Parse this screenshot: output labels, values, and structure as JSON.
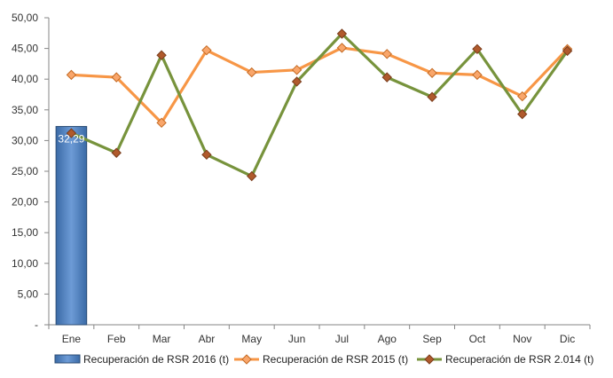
{
  "chart_data": {
    "type": "bar+line",
    "categories": [
      "Ene",
      "Feb",
      "Mar",
      "Abr",
      "May",
      "Jun",
      "Jul",
      "Ago",
      "Sep",
      "Oct",
      "Nov",
      "Dic"
    ],
    "ylim": [
      0,
      50
    ],
    "y_ticks": [
      0,
      5,
      10,
      15,
      20,
      25,
      30,
      35,
      40,
      45,
      50
    ],
    "y_tick_labels": [
      "-",
      "5,00",
      "10,00",
      "15,00",
      "20,00",
      "25,00",
      "30,00",
      "35,00",
      "40,00",
      "45,00",
      "50,00"
    ],
    "grid": false,
    "legend_position": "bottom",
    "series": [
      {
        "name": "Recuperación de RSR 2016 (t)",
        "kind": "bar",
        "color": "#4f81bd",
        "values": [
          32.29,
          null,
          null,
          null,
          null,
          null,
          null,
          null,
          null,
          null,
          null,
          null
        ],
        "data_labels": [
          "32,29"
        ]
      },
      {
        "name": "Recuperación de RSR 2015 (t)",
        "kind": "line",
        "color": "#f79646",
        "values": [
          40.7,
          40.3,
          32.9,
          44.7,
          41.1,
          41.5,
          45.1,
          44.1,
          41.0,
          40.7,
          37.2,
          44.9
        ]
      },
      {
        "name": "Recuperación de RSR 2.014 (t)",
        "kind": "line",
        "color": "#77933c",
        "values": [
          31.2,
          28.0,
          43.9,
          27.7,
          24.2,
          39.6,
          47.4,
          40.3,
          37.1,
          44.9,
          34.3,
          44.6
        ]
      }
    ]
  }
}
